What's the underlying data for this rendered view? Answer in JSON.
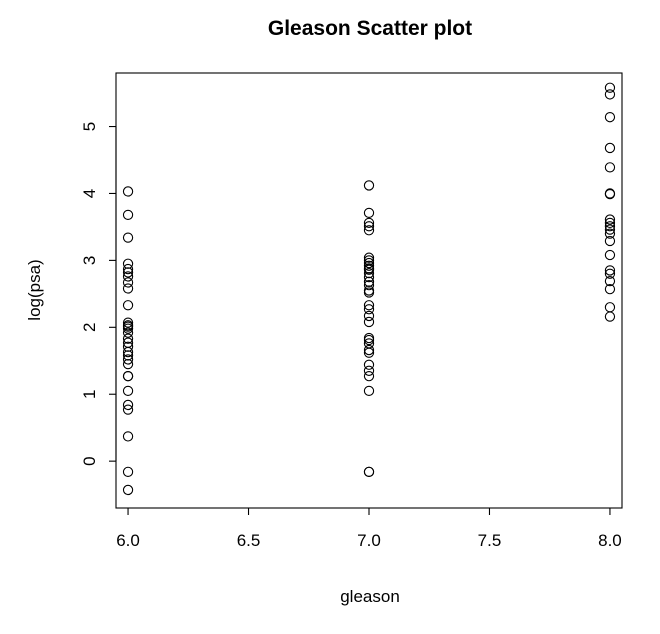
{
  "chart_data": {
    "type": "scatter",
    "title": "Gleason Scatter plot",
    "xlabel": "gleason",
    "ylabel": "log(psa)",
    "xlim": [
      5.95,
      8.05
    ],
    "ylim": [
      -0.7,
      5.8
    ],
    "x_ticks": [
      6.0,
      6.5,
      7.0,
      7.5,
      8.0
    ],
    "x_tick_labels": [
      "6.0",
      "6.5",
      "7.0",
      "7.5",
      "8.0"
    ],
    "y_ticks": [
      0,
      1,
      2,
      3,
      4,
      5
    ],
    "y_tick_labels": [
      "0",
      "1",
      "2",
      "3",
      "4",
      "5"
    ],
    "grid": false,
    "marker": "open-circle",
    "series": [
      {
        "points": [
          [
            6,
            -0.43
          ],
          [
            6,
            -0.16
          ],
          [
            6,
            0.37
          ],
          [
            6,
            0.77
          ],
          [
            6,
            0.84
          ],
          [
            6,
            1.05
          ],
          [
            6,
            1.27
          ],
          [
            6,
            1.27
          ],
          [
            6,
            1.45
          ],
          [
            6,
            1.52
          ],
          [
            6,
            1.58
          ],
          [
            6,
            1.63
          ],
          [
            6,
            1.71
          ],
          [
            6,
            1.77
          ],
          [
            6,
            1.83
          ],
          [
            6,
            1.92
          ],
          [
            6,
            1.98
          ],
          [
            6,
            2.01
          ],
          [
            6,
            2.03
          ],
          [
            6,
            2.07
          ],
          [
            6,
            2.33
          ],
          [
            6,
            2.58
          ],
          [
            6,
            2.67
          ],
          [
            6,
            2.76
          ],
          [
            6,
            2.82
          ],
          [
            6,
            2.87
          ],
          [
            6,
            2.95
          ],
          [
            6,
            3.34
          ],
          [
            6,
            3.68
          ],
          [
            6,
            4.03
          ],
          [
            7,
            -0.16
          ],
          [
            7,
            -0.16
          ],
          [
            7,
            1.05
          ],
          [
            7,
            1.27
          ],
          [
            7,
            1.35
          ],
          [
            7,
            1.44
          ],
          [
            7,
            1.62
          ],
          [
            7,
            1.66
          ],
          [
            7,
            1.76
          ],
          [
            7,
            1.81
          ],
          [
            7,
            1.84
          ],
          [
            7,
            2.08
          ],
          [
            7,
            2.17
          ],
          [
            7,
            2.27
          ],
          [
            7,
            2.33
          ],
          [
            7,
            2.52
          ],
          [
            7,
            2.55
          ],
          [
            7,
            2.63
          ],
          [
            7,
            2.68
          ],
          [
            7,
            2.75
          ],
          [
            7,
            2.81
          ],
          [
            7,
            2.86
          ],
          [
            7,
            2.88
          ],
          [
            7,
            2.92
          ],
          [
            7,
            2.96
          ],
          [
            7,
            3.0
          ],
          [
            7,
            3.04
          ],
          [
            7,
            3.45
          ],
          [
            7,
            3.51
          ],
          [
            7,
            3.56
          ],
          [
            7,
            3.71
          ],
          [
            7,
            4.12
          ],
          [
            8,
            2.16
          ],
          [
            8,
            2.3
          ],
          [
            8,
            2.57
          ],
          [
            8,
            2.69
          ],
          [
            8,
            2.8
          ],
          [
            8,
            2.85
          ],
          [
            8,
            3.08
          ],
          [
            8,
            3.29
          ],
          [
            8,
            3.4
          ],
          [
            8,
            3.46
          ],
          [
            8,
            3.51
          ],
          [
            8,
            3.56
          ],
          [
            8,
            3.61
          ],
          [
            8,
            3.99
          ],
          [
            8,
            4.0
          ],
          [
            8,
            4.39
          ],
          [
            8,
            4.68
          ],
          [
            8,
            5.14
          ],
          [
            8,
            5.48
          ],
          [
            8,
            5.58
          ]
        ]
      }
    ]
  }
}
